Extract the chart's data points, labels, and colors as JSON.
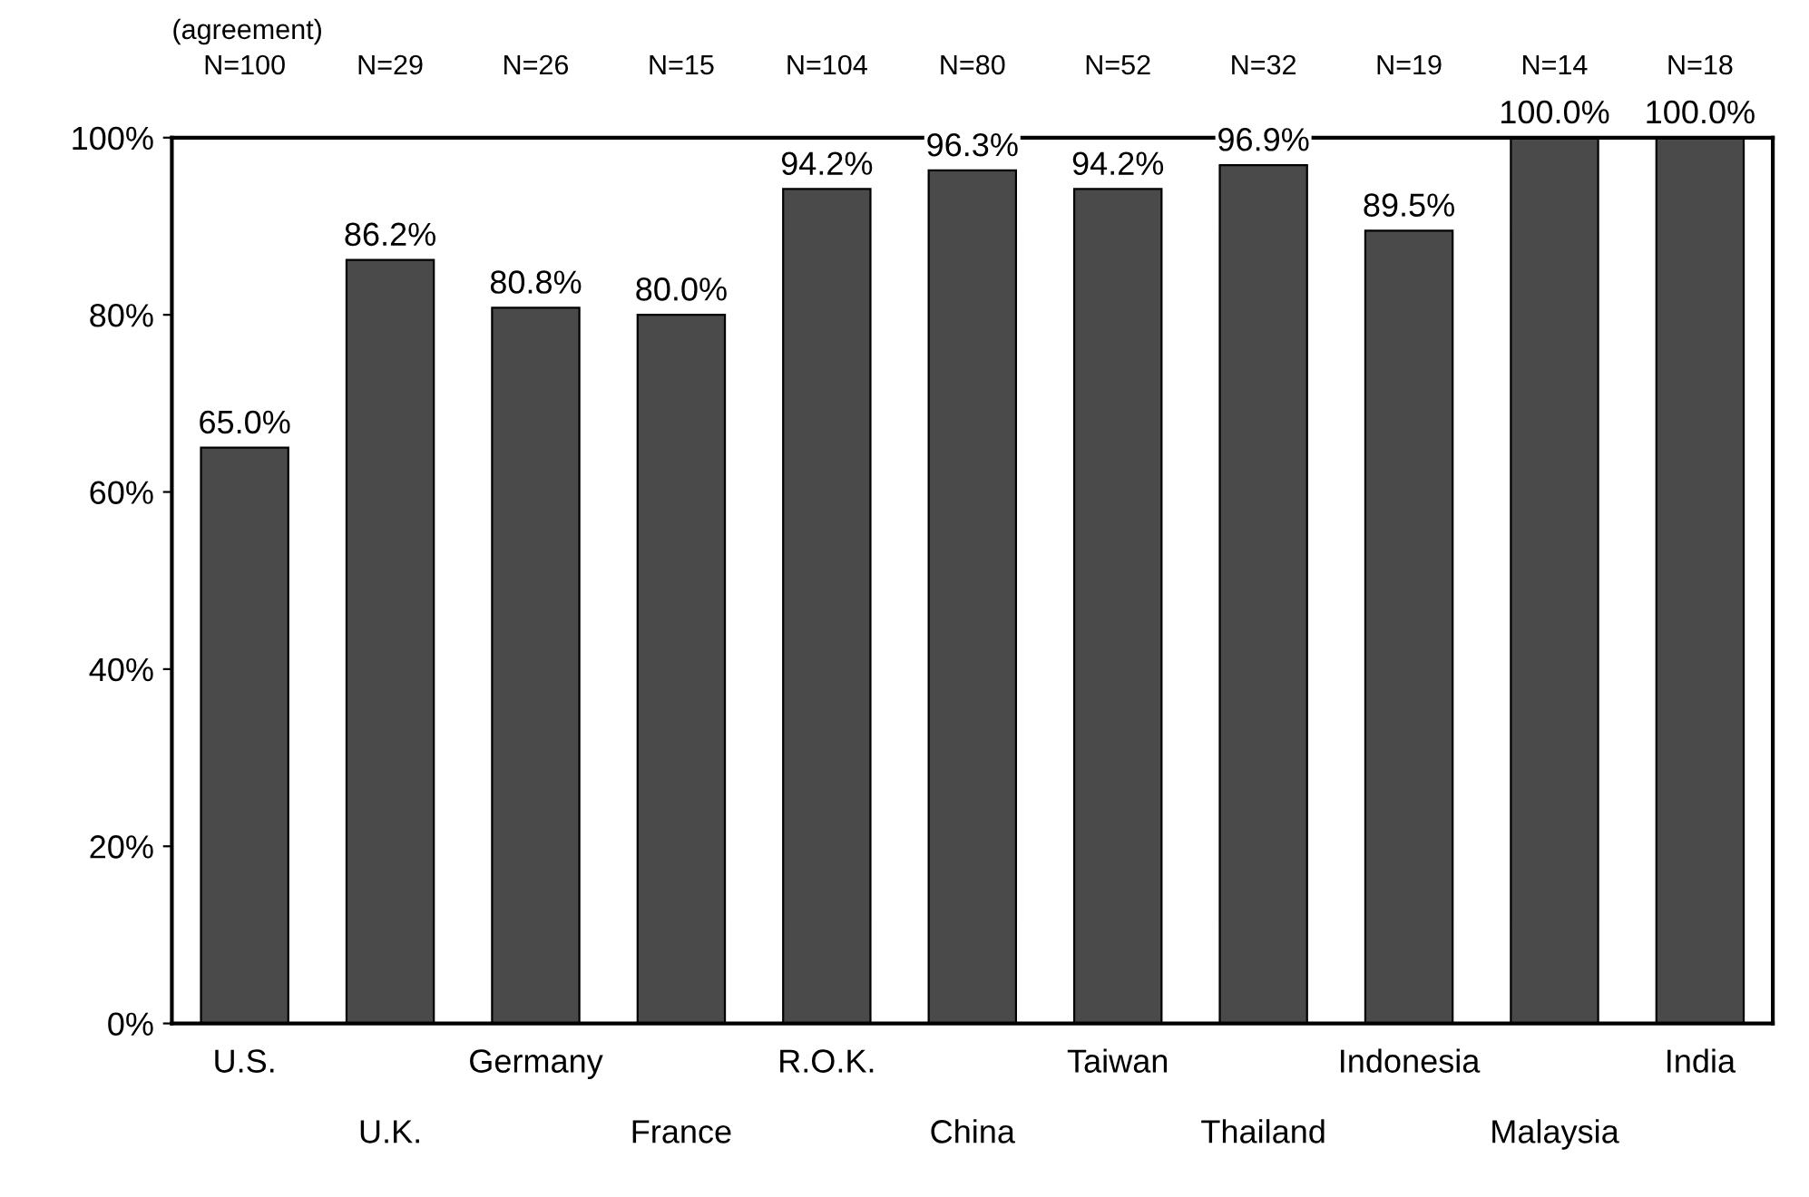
{
  "chart_data": {
    "type": "bar",
    "ylabel": "(agreement)",
    "categories": [
      "U.S.",
      "U.K.",
      "Germany",
      "France",
      "R.O.K.",
      "China",
      "Taiwan",
      "Thailand",
      "Indonesia",
      "Malaysia",
      "India"
    ],
    "values": [
      65.0,
      86.2,
      80.8,
      80.0,
      94.2,
      96.3,
      94.2,
      96.9,
      89.5,
      100.0,
      100.0
    ],
    "value_labels": [
      "65.0%",
      "86.2%",
      "80.8%",
      "80.0%",
      "94.2%",
      "96.3%",
      "94.2%",
      "96.9%",
      "89.5%",
      "100.0%",
      "100.0%"
    ],
    "color": "#4a4a4a",
    "annotations": [
      "N=100",
      "N=29",
      "N=26",
      "N=15",
      "N=104",
      "N=80",
      "N=52",
      "N=32",
      "N=19",
      "N=14",
      "N=18"
    ],
    "ylim": [
      0,
      100
    ],
    "yticks": [
      {
        "value": 0,
        "label": "0%"
      },
      {
        "value": 20,
        "label": "20%"
      },
      {
        "value": 40,
        "label": "40%"
      },
      {
        "value": 60,
        "label": "60%"
      },
      {
        "value": 80,
        "label": "80%"
      },
      {
        "value": 100,
        "label": "100%"
      }
    ],
    "grid": false,
    "legend": false
  }
}
